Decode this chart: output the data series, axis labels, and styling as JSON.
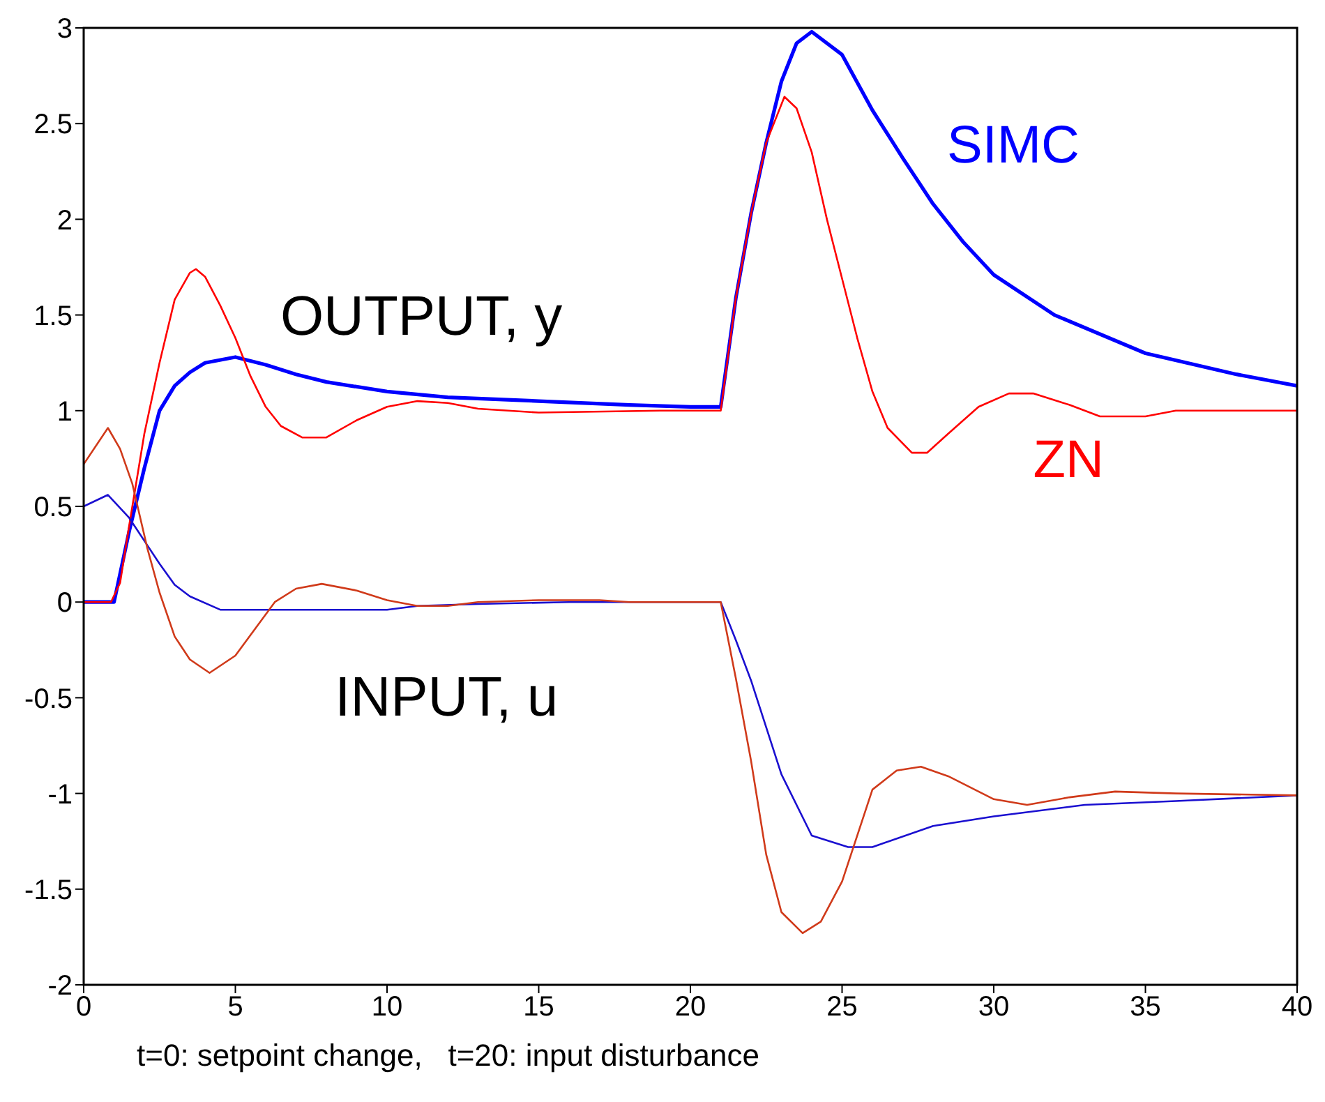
{
  "chart_data": {
    "type": "line",
    "xlim": [
      0,
      40
    ],
    "xticks": [
      0,
      5,
      10,
      15,
      20,
      25,
      30,
      35,
      40
    ],
    "ylim": [
      -2,
      3
    ],
    "yticks": [
      -2,
      -1.5,
      -1,
      -0.5,
      0,
      0.5,
      1,
      1.5,
      2,
      2.5,
      3
    ],
    "grid": false,
    "legend": false,
    "marker": "none",
    "line_style": "solid",
    "series": [
      {
        "name": "SIMC",
        "color": "#0000ff",
        "x": [
          0,
          1,
          1.5,
          2,
          2.5,
          3,
          3.5,
          4,
          5,
          6,
          7,
          8,
          10,
          12,
          15,
          18,
          20,
          21,
          21.5,
          22,
          22.5,
          23,
          23.5,
          24,
          25,
          26,
          27,
          28,
          29,
          30,
          32,
          35,
          38,
          40
        ],
        "values": [
          0,
          0,
          0.37,
          0.7,
          1.0,
          1.13,
          1.2,
          1.25,
          1.28,
          1.24,
          1.19,
          1.15,
          1.1,
          1.07,
          1.05,
          1.03,
          1.02,
          1.02,
          1.59,
          2.03,
          2.4,
          2.72,
          2.92,
          2.98,
          2.86,
          2.57,
          2.32,
          2.08,
          1.88,
          1.71,
          1.5,
          1.3,
          1.19,
          1.13
        ]
      },
      {
        "name": "ZN",
        "color": "#ff0000",
        "x": [
          0,
          0.9,
          1.2,
          1.5,
          2,
          2.5,
          3,
          3.5,
          3.7,
          4,
          4.5,
          5,
          5.5,
          6,
          6.5,
          7.2,
          8,
          9,
          10,
          11,
          12,
          13,
          15,
          19,
          21,
          21.5,
          22,
          22.5,
          23.1,
          23.5,
          24,
          24.5,
          25,
          25.5,
          26,
          26.5,
          27.3,
          27.8,
          28.5,
          29.5,
          30.5,
          31.3,
          32.5,
          33.5,
          35,
          36,
          40
        ],
        "values": [
          0,
          0,
          0.1,
          0.4,
          0.88,
          1.25,
          1.58,
          1.72,
          1.74,
          1.7,
          1.55,
          1.38,
          1.18,
          1.02,
          0.92,
          0.86,
          0.86,
          0.95,
          1.02,
          1.05,
          1.04,
          1.01,
          0.99,
          1.0,
          1.0,
          1.59,
          2.03,
          2.4,
          2.64,
          2.58,
          2.35,
          2.0,
          1.69,
          1.38,
          1.1,
          0.91,
          0.78,
          0.78,
          0.88,
          1.02,
          1.09,
          1.09,
          1.03,
          0.97,
          0.97,
          1.0,
          1.0
        ]
      },
      {
        "color": "#1a0fd0",
        "x": [
          0,
          0.8,
          1.5,
          2,
          2.5,
          3,
          3.5,
          4.5,
          10,
          11,
          13,
          16,
          21,
          21.5,
          22,
          23,
          24,
          25.2,
          26,
          28,
          30,
          33,
          36,
          40
        ],
        "values": [
          0.5,
          0.56,
          0.44,
          0.32,
          0.2,
          0.09,
          0.03,
          -0.04,
          -0.04,
          -0.02,
          -0.01,
          0,
          0,
          -0.2,
          -0.41,
          -0.9,
          -1.22,
          -1.28,
          -1.28,
          -1.17,
          -1.12,
          -1.06,
          -1.04,
          -1.01
        ]
      },
      {
        "color": "#d03a1a",
        "x": [
          0,
          0.8,
          1.2,
          1.6,
          2.1,
          2.5,
          3,
          3.5,
          4.15,
          5,
          6.3,
          7,
          7.85,
          9,
          10,
          11,
          12,
          13,
          15,
          17,
          18,
          21,
          21.5,
          22,
          22.5,
          23,
          23.7,
          24.3,
          25,
          26,
          26.8,
          27.6,
          28.5,
          30,
          31.1,
          32.5,
          34,
          36,
          40
        ],
        "values": [
          0.72,
          0.91,
          0.8,
          0.62,
          0.28,
          0.05,
          -0.18,
          -0.3,
          -0.37,
          -0.28,
          0,
          0.07,
          0.095,
          0.06,
          0.01,
          -0.02,
          -0.02,
          0,
          0.01,
          0.01,
          0,
          0,
          -0.4,
          -0.83,
          -1.32,
          -1.62,
          -1.73,
          -1.67,
          -1.46,
          -0.98,
          -0.88,
          -0.86,
          -0.91,
          -1.03,
          -1.06,
          -1.02,
          -0.99,
          -1.0,
          -1.01
        ]
      }
    ],
    "annotations": [
      "OUTPUT, y",
      "INPUT, u",
      "t=0: setpoint change,   t=20: input disturbance"
    ]
  }
}
